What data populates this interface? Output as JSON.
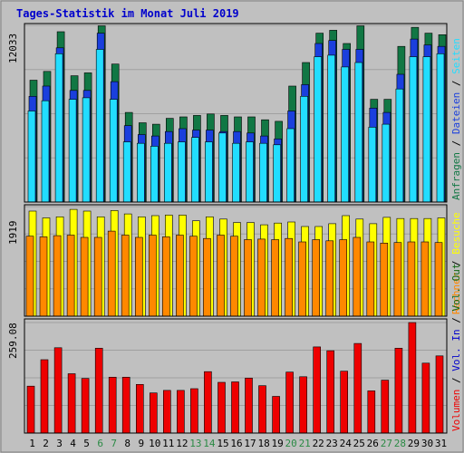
{
  "title": "Tages-Statistik im Monat Juli 2019",
  "colors": {
    "background": "#c0c0c0",
    "panel": "#c0c0c0",
    "title": "#0000cc",
    "anfragen": "#117744",
    "dateien": "#1a3fdd",
    "seiten": "#22ddff",
    "besuche": "#ffff00",
    "rechner": "#ff8800",
    "vol_out": "#116611",
    "vol_in": "#0000cc",
    "volumen": "#ee0000",
    "weekend_label": "#2a8a44",
    "weekday_label": "#000000"
  },
  "chart_data": [
    {
      "type": "bar",
      "panel": "requests",
      "ymax_label": "12033",
      "ylim": [
        0,
        12033
      ],
      "x": [
        "1",
        "2",
        "3",
        "4",
        "5",
        "6",
        "7",
        "8",
        "9",
        "10",
        "11",
        "12",
        "13",
        "14",
        "15",
        "16",
        "17",
        "18",
        "19",
        "20",
        "21",
        "22",
        "23",
        "24",
        "25",
        "26",
        "27",
        "28",
        "29",
        "30",
        "31"
      ],
      "weekend_days": [
        "6",
        "7",
        "13",
        "14",
        "20",
        "21",
        "27",
        "28"
      ],
      "legend": [
        {
          "text": "Anfragen",
          "color_key": "anfragen"
        },
        {
          "text": " / ",
          "color_key": "weekday_label"
        },
        {
          "text": "Dateien",
          "color_key": "dateien"
        },
        {
          "text": " / ",
          "color_key": "weekday_label"
        },
        {
          "text": "Seiten",
          "color_key": "seiten"
        }
      ],
      "series": [
        {
          "name": "Anfragen",
          "color_key": "anfragen",
          "values": [
            8300,
            8900,
            11600,
            8600,
            8800,
            12000,
            9400,
            6100,
            5400,
            5300,
            5700,
            5800,
            5900,
            6000,
            5900,
            5800,
            5800,
            5600,
            5500,
            7900,
            9500,
            11500,
            11700,
            10800,
            12000,
            7000,
            7000,
            10600,
            11900,
            11500,
            11400
          ]
        },
        {
          "name": "Dateien",
          "color_key": "dateien",
          "values": [
            7200,
            7900,
            10500,
            7600,
            7600,
            11500,
            8200,
            5200,
            4600,
            4500,
            4800,
            5000,
            4900,
            4900,
            4800,
            4800,
            4700,
            4500,
            4300,
            6200,
            8000,
            10800,
            11000,
            10400,
            10400,
            6400,
            6100,
            8700,
            11100,
            10700,
            10600
          ]
        },
        {
          "name": "Seiten",
          "color_key": "seiten",
          "values": [
            6200,
            6900,
            10100,
            7000,
            7100,
            10400,
            7000,
            4100,
            4000,
            3800,
            4000,
            4100,
            4400,
            4100,
            4700,
            4000,
            4100,
            4000,
            3900,
            5000,
            7200,
            9900,
            10000,
            9200,
            9500,
            5100,
            5300,
            7700,
            9900,
            9900,
            10100
          ]
        }
      ]
    },
    {
      "type": "bar",
      "panel": "visits",
      "ymax_label": "1919",
      "ylim": [
        0,
        1919
      ],
      "legend": [
        {
          "text": "Rechner",
          "color_key": "rechner"
        },
        {
          "text": " / ",
          "color_key": "weekday_label"
        },
        {
          "text": "Besuche",
          "color_key": "besuche"
        }
      ],
      "series": [
        {
          "name": "Besuche",
          "color_key": "besuche",
          "values": [
            1840,
            1720,
            1740,
            1870,
            1840,
            1740,
            1850,
            1790,
            1740,
            1760,
            1770,
            1770,
            1670,
            1740,
            1700,
            1640,
            1640,
            1600,
            1630,
            1650,
            1570,
            1570,
            1620,
            1760,
            1700,
            1620,
            1730,
            1710,
            1710,
            1710,
            1720
          ]
        },
        {
          "name": "Rechner",
          "color_key": "rechner",
          "values": [
            1400,
            1390,
            1410,
            1420,
            1380,
            1380,
            1490,
            1420,
            1380,
            1420,
            1390,
            1420,
            1400,
            1360,
            1420,
            1400,
            1340,
            1350,
            1340,
            1360,
            1300,
            1340,
            1320,
            1340,
            1380,
            1300,
            1280,
            1290,
            1300,
            1300,
            1290
          ]
        }
      ]
    },
    {
      "type": "bar",
      "panel": "volume",
      "ymax_label": "259.08",
      "ylim": [
        0,
        259.08
      ],
      "legend": [
        {
          "text": "Volumen",
          "color_key": "volumen"
        },
        {
          "text": " / ",
          "color_key": "weekday_label"
        },
        {
          "text": "Vol. In",
          "color_key": "vol_in"
        },
        {
          "text": " / ",
          "color_key": "weekday_label"
        },
        {
          "text": "Vol. Out",
          "color_key": "vol_out"
        }
      ],
      "series": [
        {
          "name": "Volumen",
          "color_key": "volumen",
          "values": [
            110,
            172,
            200,
            139,
            128,
            199,
            131,
            131,
            114,
            94,
            100,
            100,
            104,
            144,
            119,
            120,
            129,
            111,
            86,
            143,
            132,
            202,
            193,
            145,
            210,
            99,
            124,
            199,
            259,
            164,
            181
          ]
        }
      ]
    }
  ]
}
